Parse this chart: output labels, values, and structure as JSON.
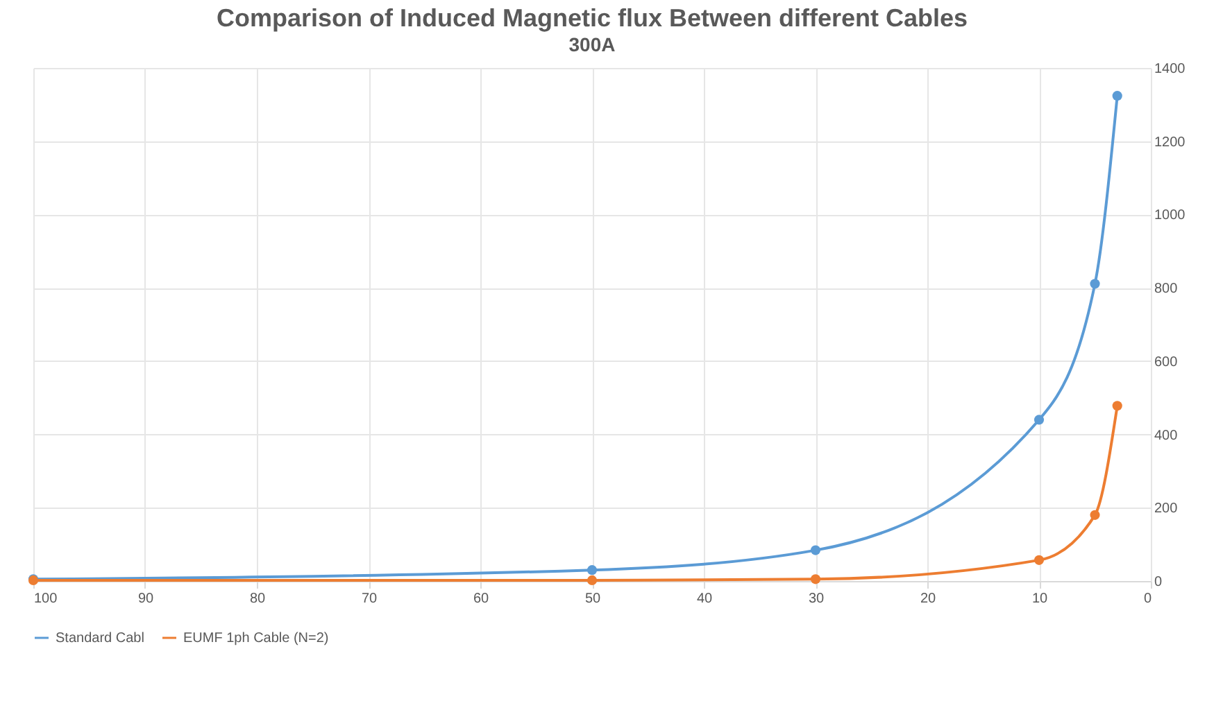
{
  "chart_data": {
    "type": "line",
    "title": "Comparison of Induced Magnetic flux Between different Cables",
    "subtitle": "300A",
    "x": [
      100,
      50,
      30,
      10,
      5,
      3
    ],
    "series": [
      {
        "name": "Standard Cabl",
        "color": "#5b9bd5",
        "values": [
          5,
          30,
          84,
          440,
          811,
          1324
        ]
      },
      {
        "name": "EUMF 1ph Cable (N=2)",
        "color": "#ed7d31",
        "values": [
          2,
          2,
          5,
          57,
          180,
          478
        ]
      }
    ],
    "xlim": [
      100,
      0
    ],
    "xticks": [
      100,
      90,
      80,
      70,
      60,
      50,
      40,
      30,
      20,
      10,
      0
    ],
    "ylim": [
      0,
      1400
    ],
    "yticks": [
      0,
      200,
      400,
      600,
      800,
      1000,
      1200,
      1400
    ],
    "grid": true,
    "legend": "bottom",
    "marker": "circle",
    "line_style": "solid"
  }
}
